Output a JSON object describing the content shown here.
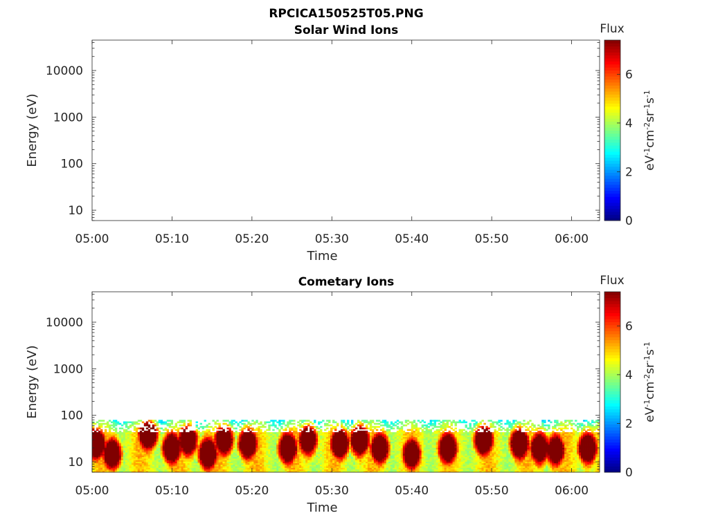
{
  "figure_title": "RPCICA150525T05.PNG",
  "colorbar": {
    "label": "Flux",
    "unit_parts": [
      "eV",
      "-1",
      "cm",
      "-2",
      "sr",
      "-1",
      "s",
      "-1"
    ],
    "ticks": [
      "0",
      "2",
      "4",
      "6"
    ],
    "range": [
      0,
      7.4
    ],
    "colormap": "jet"
  },
  "chart_data": [
    {
      "type": "heatmap",
      "title": "Solar Wind Ions",
      "xlabel": "Time",
      "ylabel": "Energy (eV)",
      "x_tick_labels": [
        "05:00",
        "05:10",
        "05:20",
        "05:30",
        "05:40",
        "05:50",
        "06:00"
      ],
      "x_range_minutes": [
        0,
        63.5
      ],
      "y_scale": "log",
      "y_tick_labels": [
        "10",
        "100",
        "1000",
        "10000"
      ],
      "y_range": [
        6,
        45000
      ],
      "data": []
    },
    {
      "type": "heatmap",
      "title": "Cometary Ions",
      "xlabel": "Time",
      "ylabel": "Energy (eV)",
      "x_tick_labels": [
        "05:00",
        "05:10",
        "05:20",
        "05:30",
        "05:40",
        "05:50",
        "06:00"
      ],
      "x_range_minutes": [
        0,
        63.5
      ],
      "y_scale": "log",
      "y_tick_labels": [
        "10",
        "100",
        "1000",
        "10000"
      ],
      "y_range": [
        6,
        45000
      ],
      "energy_max_eV": 80,
      "flux_peaks": [
        {
          "minute": 0.5,
          "energy_eV": 25,
          "flux": 7.0
        },
        {
          "minute": 2.5,
          "energy_eV": 15,
          "flux": 6.5
        },
        {
          "minute": 7.0,
          "energy_eV": 40,
          "flux": 7.2
        },
        {
          "minute": 10.0,
          "energy_eV": 20,
          "flux": 6.8
        },
        {
          "minute": 12.0,
          "energy_eV": 30,
          "flux": 6.8
        },
        {
          "minute": 14.5,
          "energy_eV": 15,
          "flux": 6.9
        },
        {
          "minute": 16.5,
          "energy_eV": 30,
          "flux": 6.5
        },
        {
          "minute": 19.5,
          "energy_eV": 25,
          "flux": 6.8
        },
        {
          "minute": 24.5,
          "energy_eV": 20,
          "flux": 6.8
        },
        {
          "minute": 27.0,
          "energy_eV": 30,
          "flux": 6.3
        },
        {
          "minute": 31.0,
          "energy_eV": 25,
          "flux": 6.6
        },
        {
          "minute": 33.5,
          "energy_eV": 30,
          "flux": 7.0
        },
        {
          "minute": 36.0,
          "energy_eV": 20,
          "flux": 6.5
        },
        {
          "minute": 40.0,
          "energy_eV": 15,
          "flux": 6.3
        },
        {
          "minute": 44.5,
          "energy_eV": 20,
          "flux": 6.8
        },
        {
          "minute": 49.0,
          "energy_eV": 30,
          "flux": 7.0
        },
        {
          "minute": 53.5,
          "energy_eV": 25,
          "flux": 6.9
        },
        {
          "minute": 56.0,
          "energy_eV": 20,
          "flux": 6.6
        },
        {
          "minute": 58.0,
          "energy_eV": 18,
          "flux": 6.4
        },
        {
          "minute": 62.0,
          "energy_eV": 20,
          "flux": 6.8
        }
      ]
    }
  ]
}
